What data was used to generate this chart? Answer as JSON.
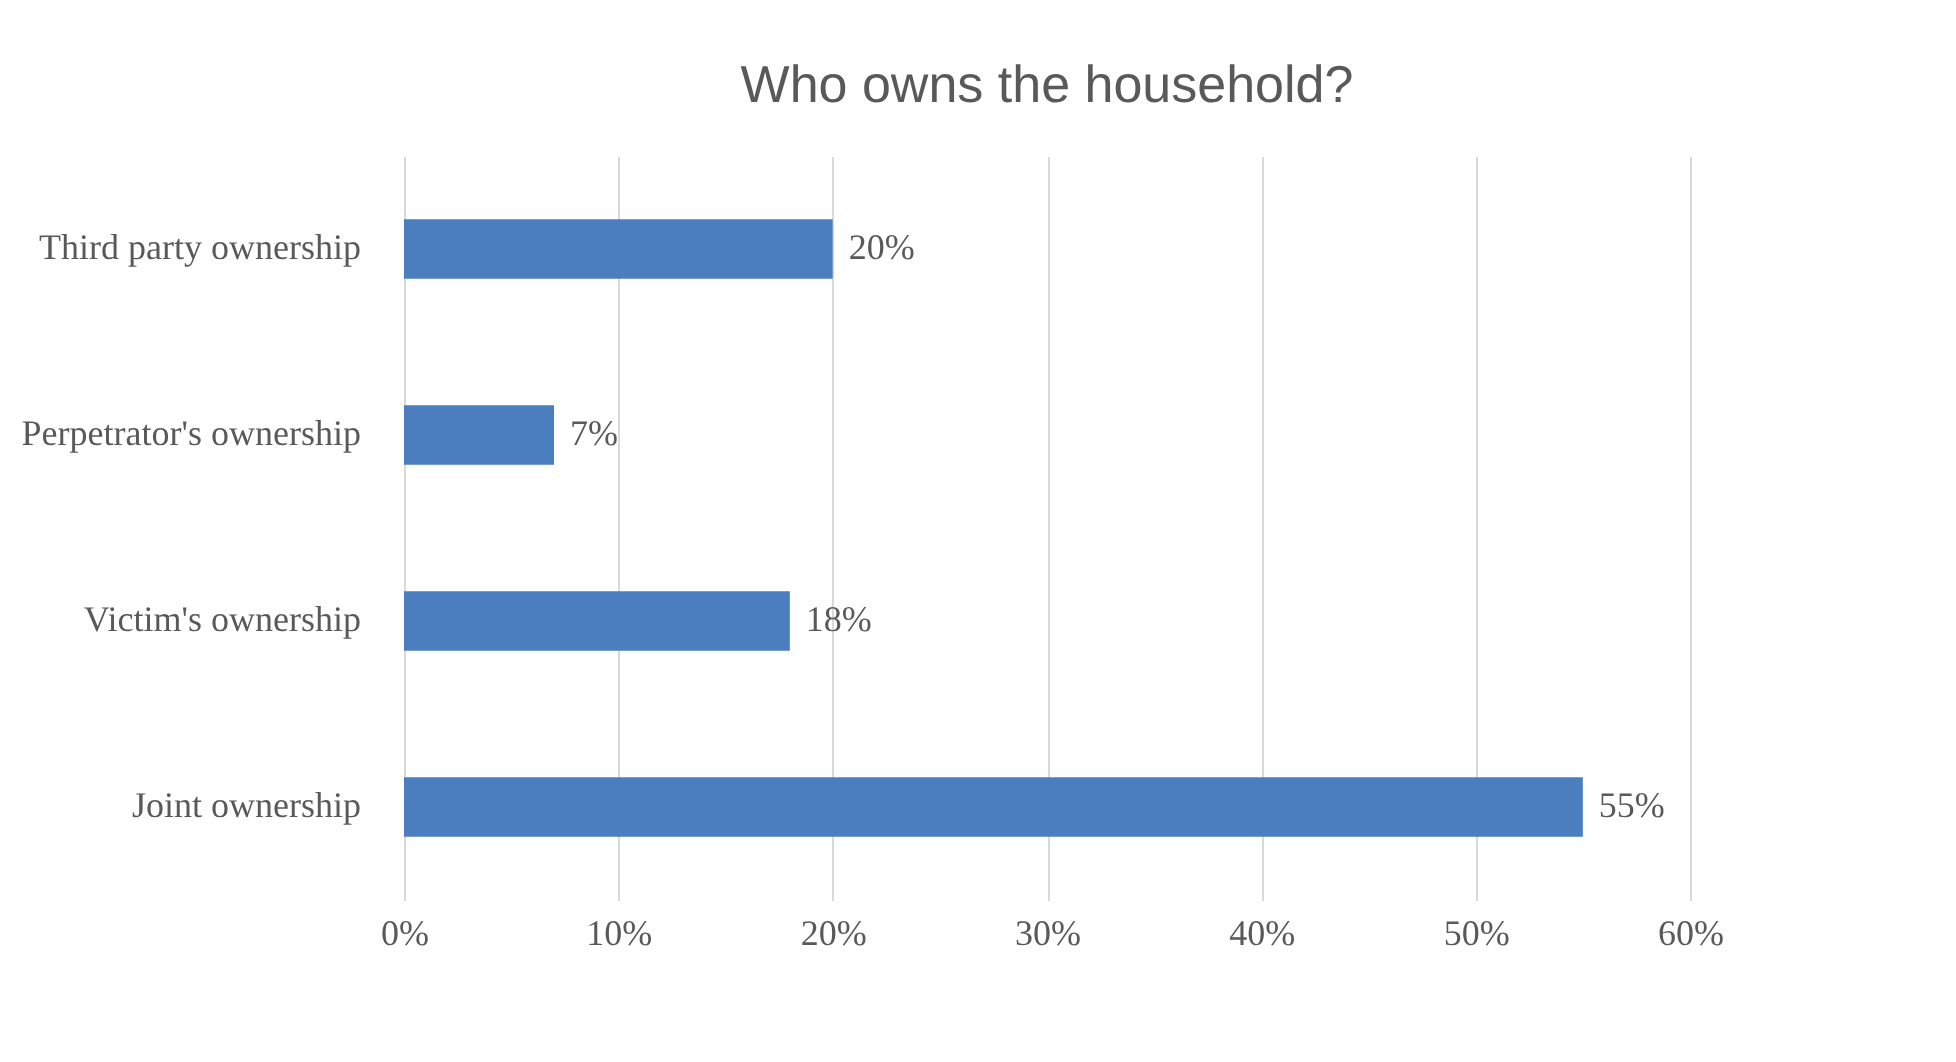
{
  "chart_data": {
    "type": "bar",
    "orientation": "horizontal",
    "title": "Who owns the household?",
    "categories": [
      "Third party ownership",
      "Perpetrator's ownership",
      "Victim's ownership",
      "Joint ownership"
    ],
    "values": [
      20,
      7,
      18,
      55
    ],
    "value_labels": [
      "20%",
      "7%",
      "18%",
      "55%"
    ],
    "color": "#4a7ebf",
    "xlim": [
      0,
      60
    ],
    "xticks": [
      {
        "value": 0,
        "label": "0%"
      },
      {
        "value": 10,
        "label": "10%"
      },
      {
        "value": 20,
        "label": "20%"
      },
      {
        "value": 30,
        "label": "30%"
      },
      {
        "value": 40,
        "label": "40%"
      },
      {
        "value": 50,
        "label": "50%"
      },
      {
        "value": 60,
        "label": "60%"
      }
    ],
    "grid": "x"
  }
}
